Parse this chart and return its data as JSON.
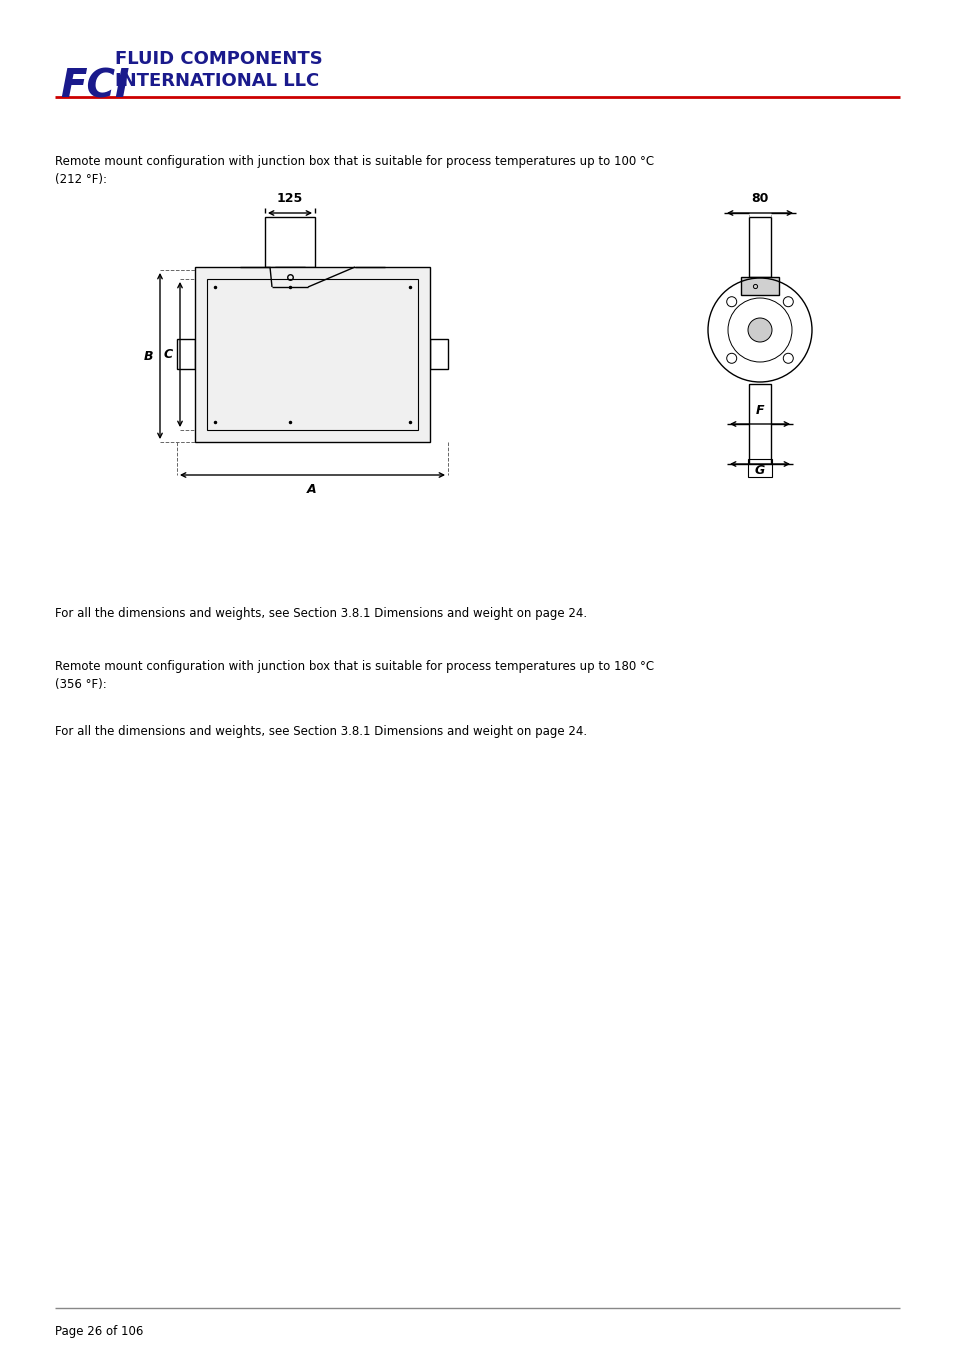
{
  "bg_color": "#ffffff",
  "text_color": "#000000",
  "logo_primary_color": "#1a1a8c",
  "logo_accent_color": "#cc0000",
  "page_text": "Page 26 of 106",
  "para1": "Remote mount configuration with junction box that is suitable for process temperatures up to 100 °C\n(212 °F):",
  "para2": "For all the dimensions and weights, see Section 3.8.1 Dimensions and weight on page 24.",
  "para3": "Remote mount configuration with junction box that is suitable for process temperatures up to 180 °C\n(356 °F):",
  "para4": "For all the dimensions and weights, see Section 3.8.1 Dimensions and weight on page 24.",
  "dim_125": "125",
  "dim_80": "80",
  "dim_A": "A",
  "dim_B": "B",
  "dim_C": "C",
  "dim_F": "F",
  "dim_G": "G",
  "drawing_lw": 1.0,
  "drawing_color": "#000000"
}
